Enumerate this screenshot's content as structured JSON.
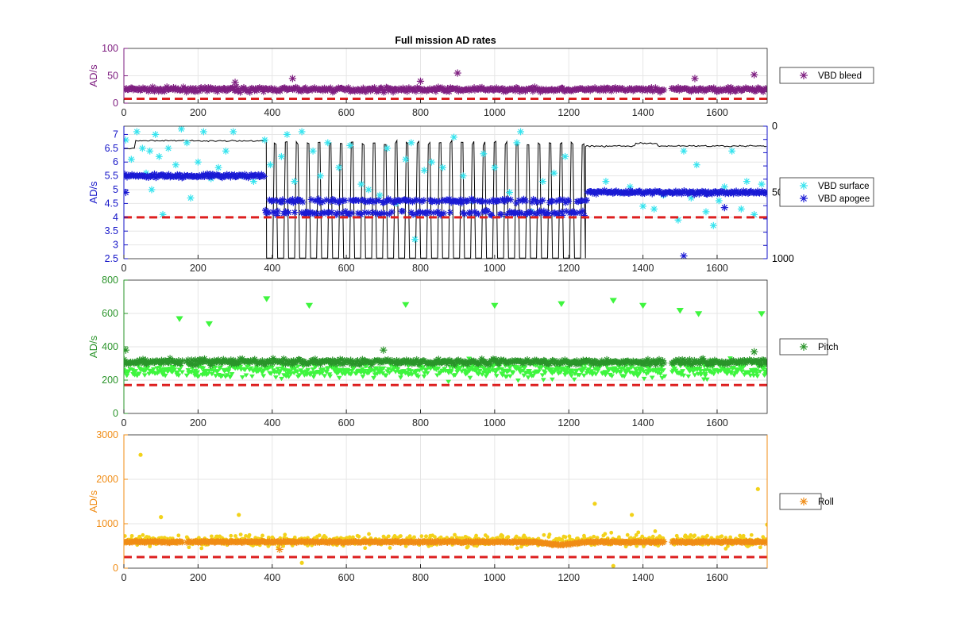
{
  "figure": {
    "title": "Full mission AD rates"
  },
  "chart_data": [
    {
      "type": "scatter",
      "panel": "vbd-bleed",
      "title": "Full mission AD rates",
      "xlabel": "",
      "ylabel": "AD/s",
      "xlim": [
        0,
        1735
      ],
      "ylim": [
        0,
        100
      ],
      "xticks": [
        0,
        200,
        400,
        600,
        800,
        1000,
        1200,
        1400,
        1600
      ],
      "yticks": [
        0,
        50,
        100
      ],
      "grid": true,
      "axis_color": "#7e1e80",
      "legend_position": "right",
      "threshold": {
        "value": 8,
        "color": "#dd1f1f",
        "style": "dashed"
      },
      "series": [
        {
          "name": "VBD bleed",
          "color": "#7e1e80",
          "marker": "asterisk",
          "x_range": [
            0,
            1735
          ],
          "baseline": 25,
          "spread": 6,
          "gaps": [
            [
              1458,
              1478
            ]
          ],
          "outliers": [
            [
              455,
              45
            ],
            [
              900,
              55
            ],
            [
              1700,
              52
            ],
            [
              300,
              38
            ],
            [
              800,
              40
            ],
            [
              1540,
              45
            ]
          ]
        }
      ]
    },
    {
      "type": "scatter",
      "panel": "vbd-rates",
      "xlabel": "",
      "ylabel": "AD/s",
      "xlim": [
        0,
        1735
      ],
      "ylim": [
        2.5,
        7.3
      ],
      "xticks": [
        0,
        200,
        400,
        600,
        800,
        1000,
        1200,
        1400,
        1600
      ],
      "yticks": [
        2.5,
        3,
        3.5,
        4,
        4.5,
        5,
        5.5,
        6,
        6.5,
        7
      ],
      "right_axis": {
        "ylim": [
          0,
          1000
        ],
        "reversed": true,
        "ticks": [
          0,
          500,
          1000
        ]
      },
      "grid": true,
      "axis_color": "#1515c8",
      "legend_position": "right",
      "threshold": {
        "value": 4,
        "color": "#dd1f1f",
        "style": "dashed"
      },
      "series": [
        {
          "name": "VBD surface",
          "color": "#35e3ee",
          "marker": "asterisk",
          "points": [
            [
              5,
              6.8
            ],
            [
              20,
              6.1
            ],
            [
              35,
              7.1
            ],
            [
              50,
              6.5
            ],
            [
              60,
              5.6
            ],
            [
              70,
              6.4
            ],
            [
              75,
              5.0
            ],
            [
              85,
              7.0
            ],
            [
              95,
              6.2
            ],
            [
              105,
              4.1
            ],
            [
              120,
              6.5
            ],
            [
              140,
              5.9
            ],
            [
              155,
              7.2
            ],
            [
              170,
              6.7
            ],
            [
              180,
              4.7
            ],
            [
              200,
              6.0
            ],
            [
              215,
              7.1
            ],
            [
              235,
              5.4
            ],
            [
              255,
              5.8
            ],
            [
              275,
              6.4
            ],
            [
              295,
              7.1
            ],
            [
              320,
              5.5
            ],
            [
              350,
              5.3
            ],
            [
              380,
              6.8
            ],
            [
              395,
              5.9
            ],
            [
              425,
              6.2
            ],
            [
              440,
              7.0
            ],
            [
              460,
              5.3
            ],
            [
              480,
              7.1
            ],
            [
              510,
              6.4
            ],
            [
              530,
              5.5
            ],
            [
              550,
              6.7
            ],
            [
              580,
              5.8
            ],
            [
              610,
              6.6
            ],
            [
              640,
              5.2
            ],
            [
              660,
              5.0
            ],
            [
              690,
              4.8
            ],
            [
              710,
              6.5
            ],
            [
              735,
              4.5
            ],
            [
              760,
              6.1
            ],
            [
              775,
              6.7
            ],
            [
              785,
              3.2
            ],
            [
              810,
              5.7
            ],
            [
              830,
              6.0
            ],
            [
              860,
              5.8
            ],
            [
              890,
              6.9
            ],
            [
              915,
              5.5
            ],
            [
              940,
              4.6
            ],
            [
              970,
              6.3
            ],
            [
              1000,
              5.8
            ],
            [
              1040,
              4.9
            ],
            [
              1060,
              6.7
            ],
            [
              1070,
              7.1
            ],
            [
              1100,
              4.2
            ],
            [
              1130,
              5.3
            ],
            [
              1160,
              5.6
            ],
            [
              1190,
              6.2
            ],
            [
              1300,
              5.3
            ],
            [
              1340,
              4.9
            ],
            [
              1365,
              5.1
            ],
            [
              1400,
              4.4
            ],
            [
              1430,
              4.3
            ],
            [
              1455,
              4.8
            ],
            [
              1495,
              3.9
            ],
            [
              1510,
              6.4
            ],
            [
              1530,
              4.7
            ],
            [
              1545,
              5.9
            ],
            [
              1570,
              4.2
            ],
            [
              1590,
              3.7
            ],
            [
              1605,
              4.6
            ],
            [
              1620,
              5.1
            ],
            [
              1640,
              6.4
            ],
            [
              1665,
              4.3
            ],
            [
              1680,
              5.3
            ],
            [
              1700,
              4.1
            ],
            [
              1720,
              5.2
            ]
          ]
        },
        {
          "name": "VBD apogee",
          "color": "#1a1ad4",
          "marker": "asterisk",
          "x_range": [
            0,
            1735
          ],
          "baseline": 5.5,
          "spread": 0.1,
          "segments": [
            [
              0,
              380,
              5.5
            ],
            [
              380,
              1250,
              4.6
            ],
            [
              1250,
              1735,
              4.9
            ]
          ],
          "outliers": [
            [
              5,
              4.9
            ],
            [
              1510,
              2.6
            ],
            [
              1620,
              4.35
            ]
          ]
        },
        {
          "name": "",
          "color": "#000000",
          "marker": "none",
          "axis": "right",
          "line": true,
          "description_values": {
            "surface_level": 170,
            "dive_level": 995,
            "dive_region": [
              385,
              1245
            ]
          }
        }
      ]
    },
    {
      "type": "scatter",
      "panel": "pitch",
      "xlabel": "",
      "ylabel": "AD/s",
      "xlim": [
        0,
        1735
      ],
      "ylim": [
        0,
        800
      ],
      "xticks": [
        0,
        200,
        400,
        600,
        800,
        1000,
        1200,
        1400,
        1600
      ],
      "yticks": [
        0,
        200,
        400,
        600,
        800
      ],
      "grid": true,
      "axis_color": "#2a942a",
      "legend_position": "right",
      "threshold": {
        "value": 170,
        "color": "#dd1f1f",
        "style": "dashed"
      },
      "series": [
        {
          "name": "",
          "color": "#3ef53e",
          "marker": "triangle",
          "x_range": [
            0,
            1735
          ],
          "baseline": 260,
          "spread": 55,
          "gaps": [
            [
              158,
              168
            ],
            [
              1458,
              1478
            ]
          ],
          "outliers": [
            [
              150,
              570
            ],
            [
              230,
              540
            ],
            [
              385,
              690
            ],
            [
              500,
              650
            ],
            [
              760,
              655
            ],
            [
              1000,
              650
            ],
            [
              1180,
              660
            ],
            [
              1320,
              680
            ],
            [
              1400,
              650
            ],
            [
              1500,
              620
            ],
            [
              1550,
              600
            ],
            [
              1720,
              600
            ]
          ]
        },
        {
          "name": "Pitch",
          "color": "#2a942a",
          "marker": "asterisk",
          "x_range": [
            0,
            1735
          ],
          "baseline": 310,
          "spread": 25,
          "gaps": [
            [
              158,
              168
            ],
            [
              1458,
              1478
            ]
          ],
          "outliers": [
            [
              5,
              380
            ],
            [
              700,
              380
            ],
            [
              1700,
              370
            ]
          ]
        }
      ]
    },
    {
      "type": "scatter",
      "panel": "roll",
      "xlabel": "",
      "ylabel": "AD/s",
      "xlim": [
        0,
        1735
      ],
      "ylim": [
        0,
        3000
      ],
      "xticks": [
        0,
        200,
        400,
        600,
        800,
        1000,
        1200,
        1400,
        1600
      ],
      "yticks": [
        0,
        1000,
        2000,
        3000
      ],
      "grid": true,
      "axis_color": "#f08c15",
      "legend_position": "right",
      "threshold": {
        "value": 250,
        "color": "#dd1f1f",
        "style": "dashed"
      },
      "series": [
        {
          "name": "",
          "color": "#f2d21a",
          "marker": "dot",
          "x_range": [
            0,
            1735
          ],
          "baseline": 620,
          "spread": 160,
          "gaps": [
            [
              158,
              168
            ],
            [
              1458,
              1478
            ]
          ],
          "outliers": [
            [
              45,
              2550
            ],
            [
              100,
              1150
            ],
            [
              310,
              1200
            ],
            [
              1270,
              1450
            ],
            [
              1370,
              1200
            ],
            [
              1710,
              1780
            ],
            [
              1735,
              980
            ],
            [
              480,
              120
            ],
            [
              1320,
              50
            ]
          ]
        },
        {
          "name": "Roll",
          "color": "#f08c15",
          "marker": "asterisk",
          "x_range": [
            0,
            1735
          ],
          "baseline": 590,
          "spread": 25,
          "gaps": [
            [
              158,
              168
            ],
            [
              1458,
              1478
            ]
          ],
          "dip": [
            1100,
            1250,
            520
          ],
          "outliers": [
            [
              420,
              420
            ]
          ]
        }
      ]
    }
  ]
}
